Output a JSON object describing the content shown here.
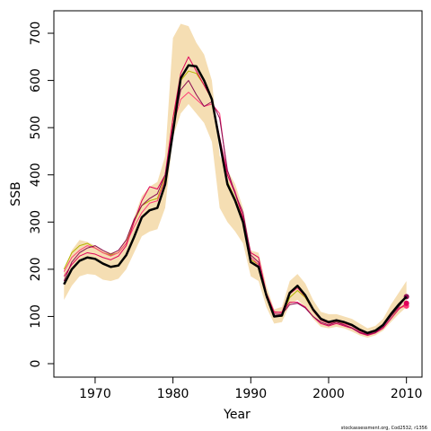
{
  "chart_data": {
    "type": "line",
    "x_label": "Year",
    "y_label": "SSB",
    "caption": "stockassessment.org, Cod2532, r1356",
    "x": [
      1966,
      1967,
      1968,
      1969,
      1970,
      1971,
      1972,
      1973,
      1974,
      1975,
      1976,
      1977,
      1978,
      1979,
      1980,
      1981,
      1982,
      1983,
      1984,
      1985,
      1986,
      1987,
      1988,
      1989,
      1990,
      1991,
      1992,
      1993,
      1994,
      1995,
      1996,
      1997,
      1998,
      1999,
      2000,
      2001,
      2002,
      2003,
      2004,
      2005,
      2006,
      2007,
      2008,
      2009,
      2010
    ],
    "band": {
      "color": "#f5deb3",
      "upper": [
        195,
        240,
        262,
        258,
        250,
        240,
        235,
        240,
        265,
        310,
        355,
        375,
        385,
        440,
        690,
        720,
        715,
        680,
        655,
        600,
        440,
        410,
        380,
        330,
        240,
        235,
        165,
        115,
        120,
        175,
        190,
        170,
        135,
        110,
        105,
        105,
        100,
        95,
        85,
        75,
        80,
        95,
        125,
        150,
        175
      ],
      "lower": [
        135,
        165,
        185,
        190,
        188,
        178,
        175,
        180,
        200,
        235,
        270,
        280,
        285,
        330,
        480,
        530,
        550,
        530,
        510,
        470,
        330,
        300,
        280,
        255,
        185,
        175,
        120,
        85,
        88,
        125,
        135,
        120,
        95,
        78,
        75,
        78,
        75,
        68,
        60,
        55,
        60,
        70,
        88,
        105,
        120
      ]
    },
    "series": [
      {
        "color": "#b5b500",
        "width": 1,
        "marker_last": false,
        "values": [
          200,
          235,
          250,
          255,
          245,
          235,
          230,
          235,
          255,
          300,
          335,
          345,
          350,
          395,
          520,
          600,
          620,
          615,
          590,
          560,
          470,
          385,
          350,
          305,
          220,
          210,
          145,
          100,
          100,
          140,
          155,
          140,
          112,
          92,
          86,
          90,
          86,
          80,
          70,
          64,
          68,
          80,
          100,
          118,
          125
        ]
      },
      {
        "color": "#ff3c78",
        "width": 1,
        "marker_last": true,
        "values": [
          195,
          225,
          240,
          250,
          245,
          235,
          228,
          235,
          255,
          290,
          320,
          340,
          345,
          390,
          505,
          560,
          575,
          560,
          545,
          550,
          530,
          400,
          365,
          310,
          225,
          210,
          145,
          108,
          110,
          148,
          160,
          142,
          112,
          92,
          85,
          88,
          84,
          80,
          68,
          63,
          68,
          80,
          102,
          118,
          122
        ]
      },
      {
        "color": "#e0005a",
        "width": 1,
        "marker_last": true,
        "values": [
          185,
          210,
          228,
          235,
          232,
          225,
          220,
          228,
          250,
          300,
          345,
          375,
          370,
          400,
          520,
          615,
          650,
          620,
          590,
          560,
          480,
          400,
          360,
          310,
          235,
          225,
          150,
          110,
          108,
          130,
          130,
          120,
          100,
          85,
          80,
          85,
          80,
          75,
          65,
          60,
          65,
          75,
          95,
          115,
          128
        ]
      },
      {
        "color": "#8b0a50",
        "width": 1,
        "marker_last": true,
        "values": [
          175,
          215,
          235,
          245,
          250,
          240,
          232,
          240,
          262,
          305,
          335,
          350,
          360,
          400,
          500,
          580,
          600,
          570,
          545,
          555,
          520,
          410,
          360,
          320,
          230,
          215,
          140,
          105,
          105,
          125,
          128,
          118,
          100,
          88,
          82,
          88,
          82,
          76,
          66,
          62,
          66,
          78,
          100,
          120,
          142
        ]
      },
      {
        "color": "#000000",
        "width": 2.5,
        "marker_last": false,
        "values": [
          168,
          200,
          218,
          225,
          222,
          212,
          205,
          208,
          230,
          268,
          310,
          325,
          330,
          380,
          490,
          605,
          632,
          630,
          600,
          560,
          470,
          380,
          345,
          300,
          215,
          205,
          145,
          100,
          102,
          150,
          165,
          145,
          115,
          95,
          88,
          92,
          88,
          82,
          72,
          65,
          70,
          82,
          105,
          125,
          142
        ]
      }
    ],
    "xlim": [
      1964.7,
      2012
    ],
    "ylim": [
      -28.5,
      747.6
    ],
    "xticks": [
      1970,
      1980,
      1990,
      2000,
      2010
    ],
    "yticks": [
      0,
      100,
      200,
      300,
      400,
      500,
      600,
      700
    ]
  }
}
